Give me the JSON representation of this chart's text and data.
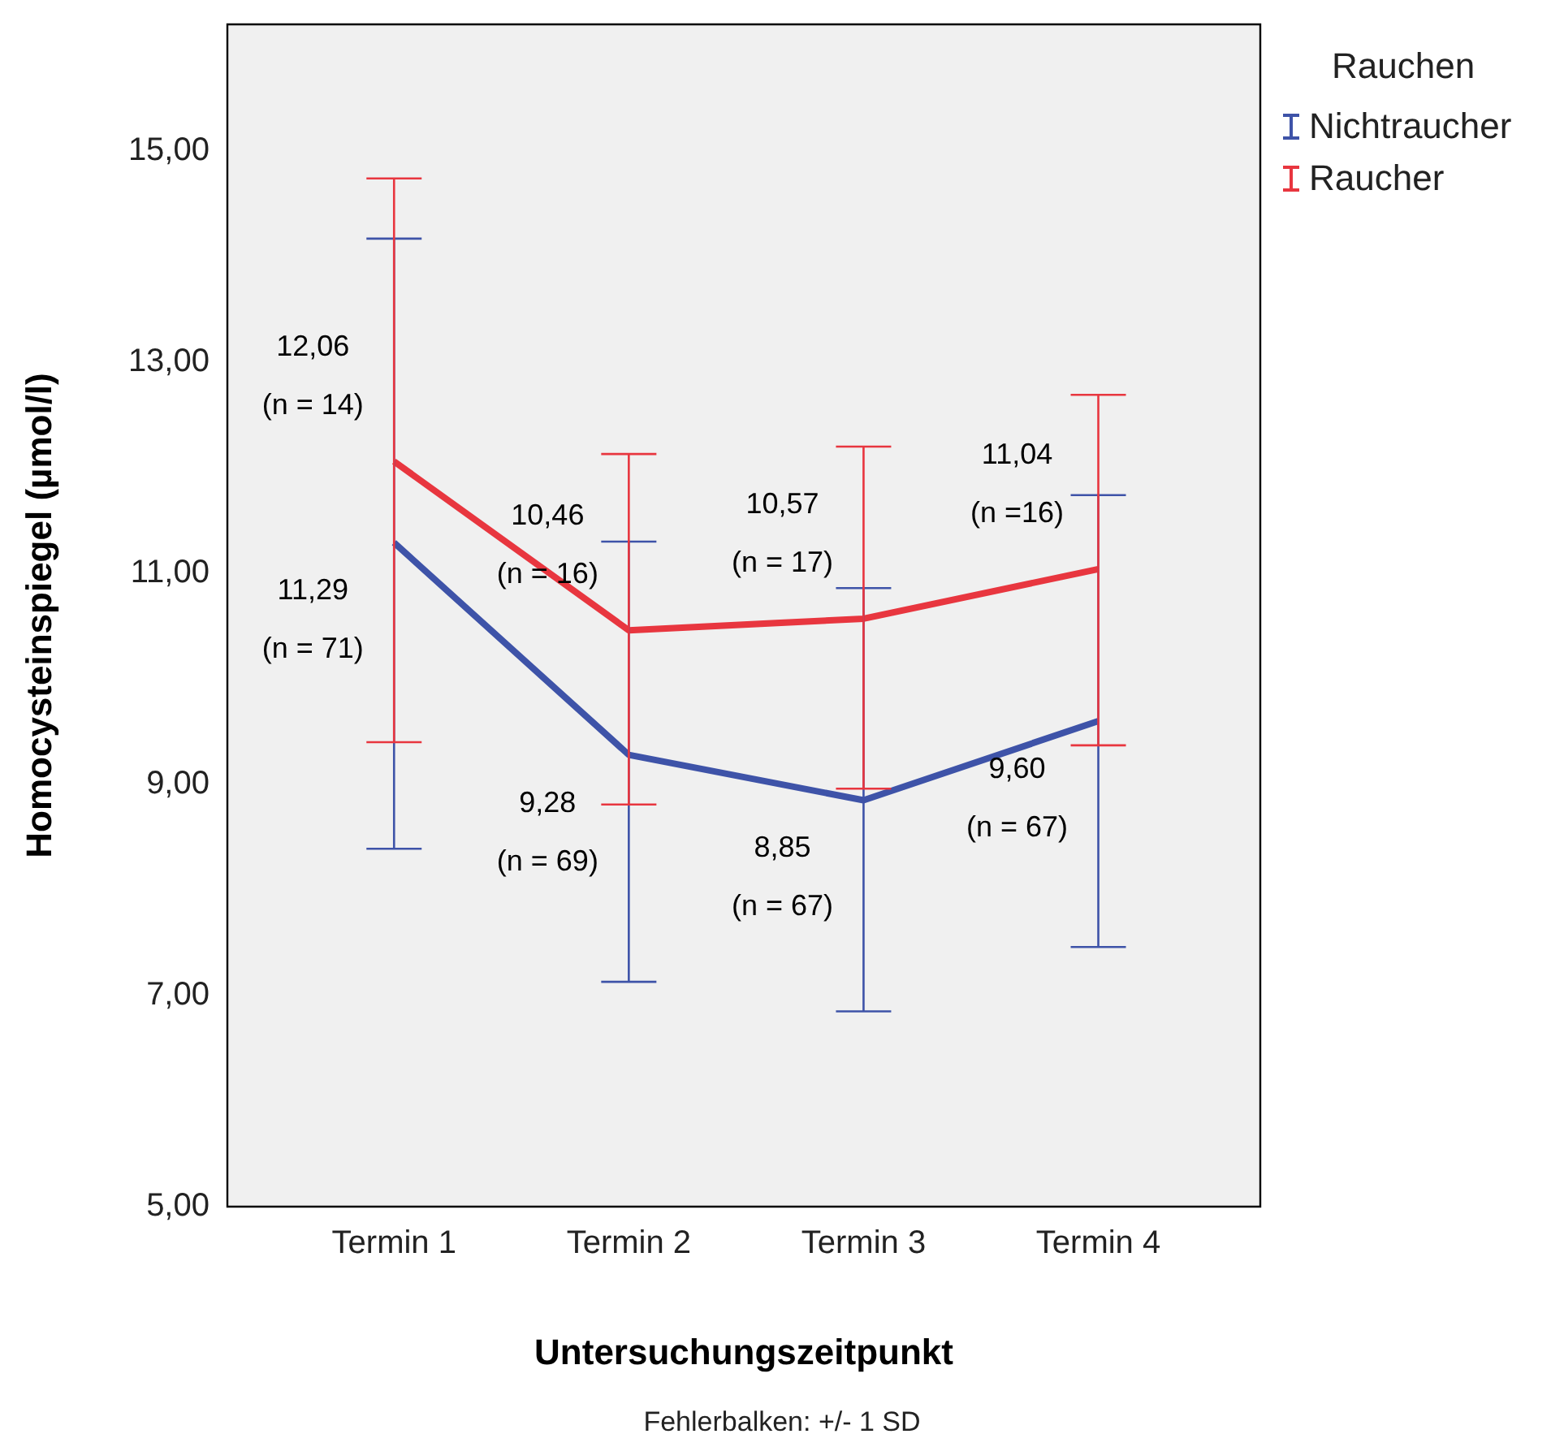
{
  "chart_data": {
    "type": "line",
    "xlabel": "Untersuchungszeitpunkt",
    "ylabel": "Homocysteinspiegel (µmol/l)",
    "legend_title": "Rauchen",
    "legend": "right",
    "marker": "none",
    "grid": false,
    "categories": [
      "Termin 1",
      "Termin 2",
      "Termin 3",
      "Termin 4"
    ],
    "ylim": [
      5,
      16.2
    ],
    "yticks": [
      {
        "value": 5,
        "label": "5,00"
      },
      {
        "value": 7,
        "label": "7,00"
      },
      {
        "value": 9,
        "label": "9,00"
      },
      {
        "value": 11,
        "label": "11,00"
      },
      {
        "value": 13,
        "label": "13,00"
      },
      {
        "value": 15,
        "label": "15,00"
      }
    ],
    "series": [
      {
        "name": "Nichtraucher",
        "color": "#3e53a8",
        "values": [
          11.29,
          9.28,
          8.85,
          9.6
        ],
        "errors": [
          [
            8.39,
            14.17
          ],
          [
            7.13,
            11.3
          ],
          [
            6.85,
            10.86
          ],
          [
            7.46,
            11.74
          ]
        ],
        "value_labels": [
          "11,29\n(n = 71)",
          "9,28\n(n = 69)",
          "8,85\n(n = 67)",
          "9,60\n(n = 67)"
        ]
      },
      {
        "name": "Raucher",
        "color": "#e8363f",
        "values": [
          12.06,
          10.46,
          10.57,
          11.04
        ],
        "errors": [
          [
            9.4,
            14.74
          ],
          [
            8.81,
            12.13
          ],
          [
            8.96,
            12.2
          ],
          [
            9.37,
            12.69
          ]
        ],
        "value_labels": [
          "12,06\n(n = 14)",
          "10,46\n(n = 16)",
          "10,57\n(n = 17)",
          "11,04\n(n =16)"
        ]
      }
    ],
    "annotations": [
      "Fehlerbalken: +/- 1 SD"
    ]
  }
}
